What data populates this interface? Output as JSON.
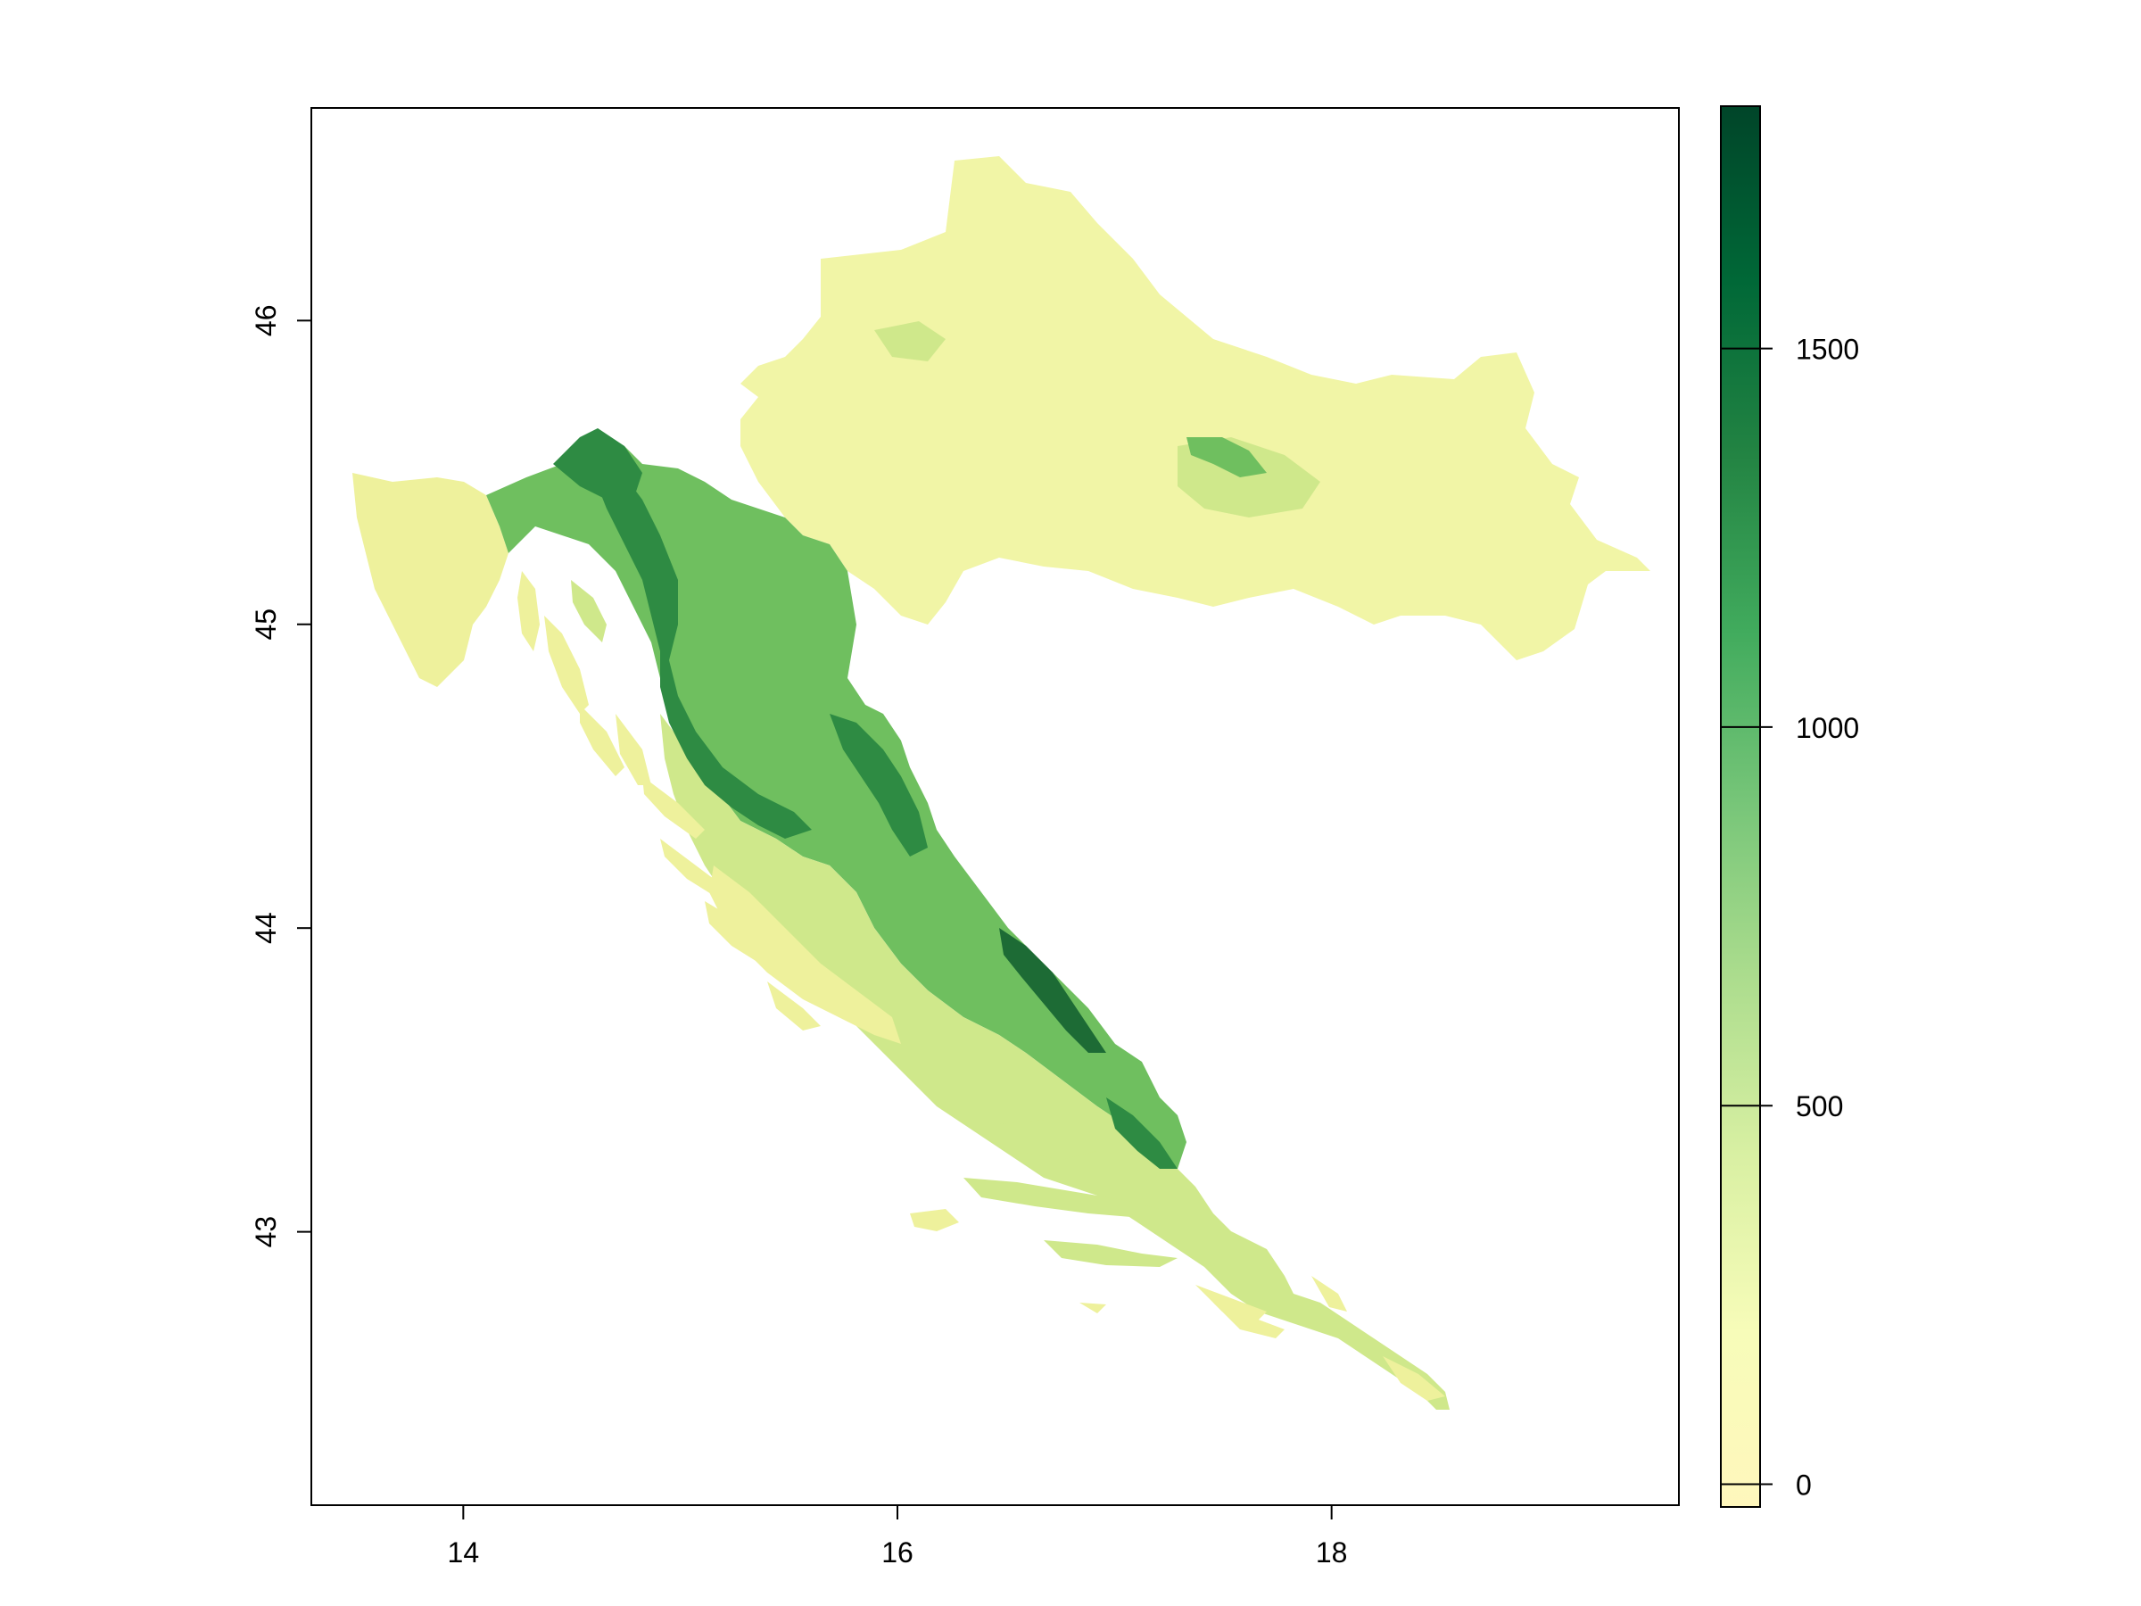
{
  "map": {
    "x_axis": {
      "range": [
        13.3,
        19.6
      ],
      "ticks": [
        {
          "value": 14,
          "label": "14"
        },
        {
          "value": 16,
          "label": "16"
        },
        {
          "value": 18,
          "label": "18"
        }
      ]
    },
    "y_axis": {
      "range": [
        42.1,
        46.7
      ],
      "ticks": [
        {
          "value": 43,
          "label": "43"
        },
        {
          "value": 44,
          "label": "44"
        },
        {
          "value": 45,
          "label": "45"
        },
        {
          "value": 46,
          "label": "46"
        }
      ]
    },
    "legend": {
      "placement": "right",
      "range": [
        -30,
        1820
      ],
      "colors": [
        "#fff7bc",
        "#f7fcb9",
        "#d9f0a3",
        "#addd8e",
        "#78c679",
        "#41ab5d",
        "#238443",
        "#006837",
        "#004529"
      ],
      "ticks": [
        {
          "value": 0,
          "label": "0"
        },
        {
          "value": 500,
          "label": "500"
        },
        {
          "value": 1000,
          "label": "1000"
        },
        {
          "value": 1500,
          "label": "1500"
        }
      ]
    },
    "region_colors": {
      "lowland": "#f1f5a6",
      "coast": "#eef19c",
      "hills": "#cfe88b",
      "mountain_mid": "#6fbf5f",
      "mountain_high": "#2e8b43",
      "peak": "#1d6b35"
    }
  }
}
